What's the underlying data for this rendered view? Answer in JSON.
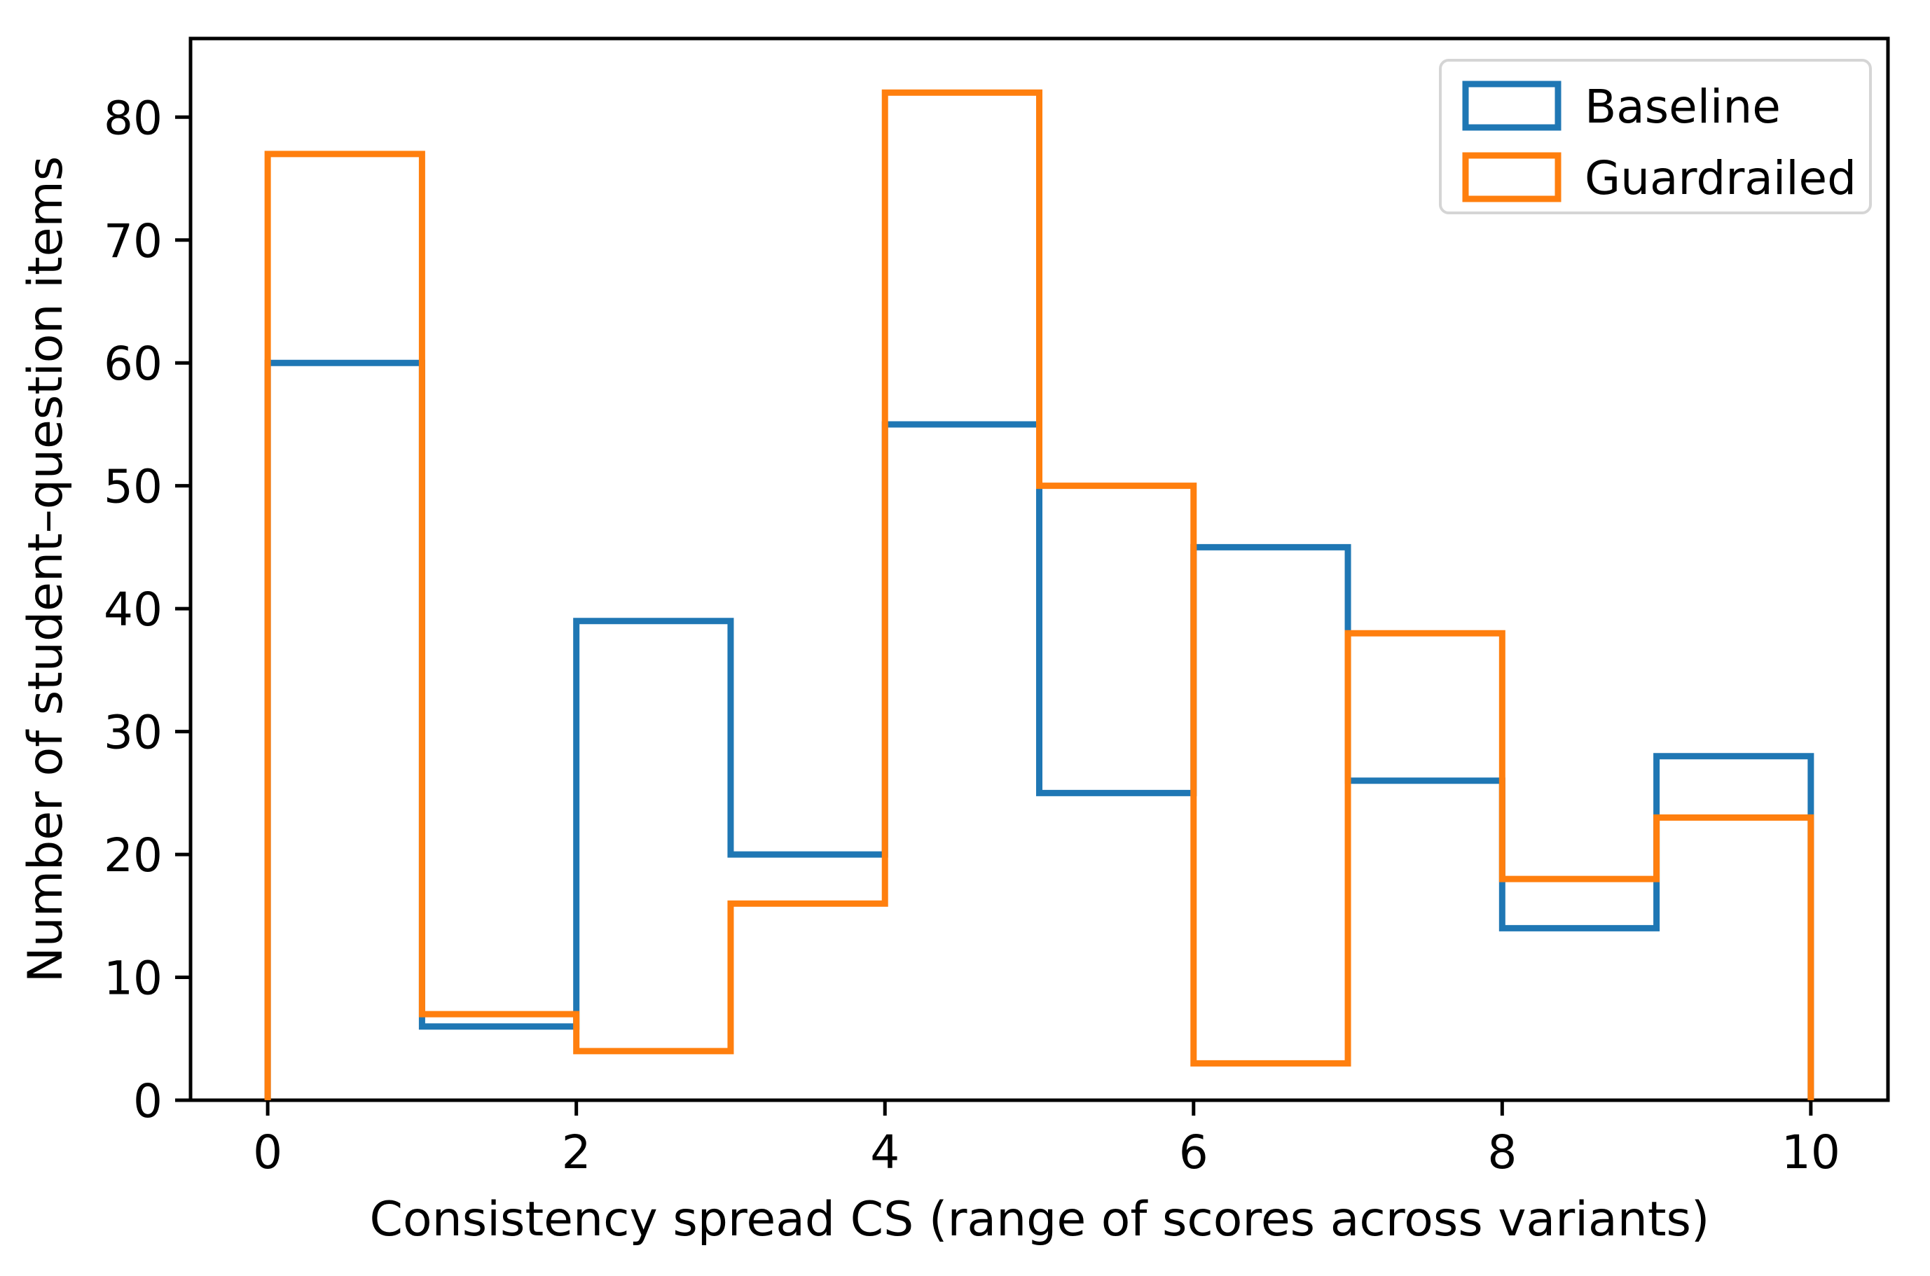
{
  "figure": {
    "background": "#ffffff",
    "frame_color": "#000000"
  },
  "legend": {
    "position": "upper right",
    "items": [
      {
        "label": "Baseline",
        "color": "#1f77b4"
      },
      {
        "label": "Guardrailed",
        "color": "#ff7f0e"
      }
    ]
  },
  "chart_data": {
    "type": "step-histogram",
    "title": "",
    "xlabel": "Consistency spread CS (range of scores across variants)",
    "ylabel": "Number of student–question items",
    "bin_edges": [
      0,
      1,
      2,
      3,
      4,
      5,
      6,
      7,
      8,
      9,
      10
    ],
    "series": [
      {
        "name": "Baseline",
        "color": "#1f77b4",
        "counts": [
          60,
          6,
          39,
          20,
          55,
          25,
          45,
          26,
          14,
          28
        ]
      },
      {
        "name": "Guardrailed",
        "color": "#ff7f0e",
        "counts": [
          77,
          7,
          4,
          16,
          82,
          50,
          3,
          38,
          18,
          23
        ]
      }
    ],
    "x_ticks": [
      0,
      2,
      4,
      6,
      8,
      10
    ],
    "y_ticks": [
      0,
      10,
      20,
      30,
      40,
      50,
      60,
      70,
      80
    ],
    "xlim": [
      -0.5,
      10.5
    ],
    "ylim": [
      0,
      86.4
    ],
    "grid": false,
    "legend_position": "upper right"
  }
}
